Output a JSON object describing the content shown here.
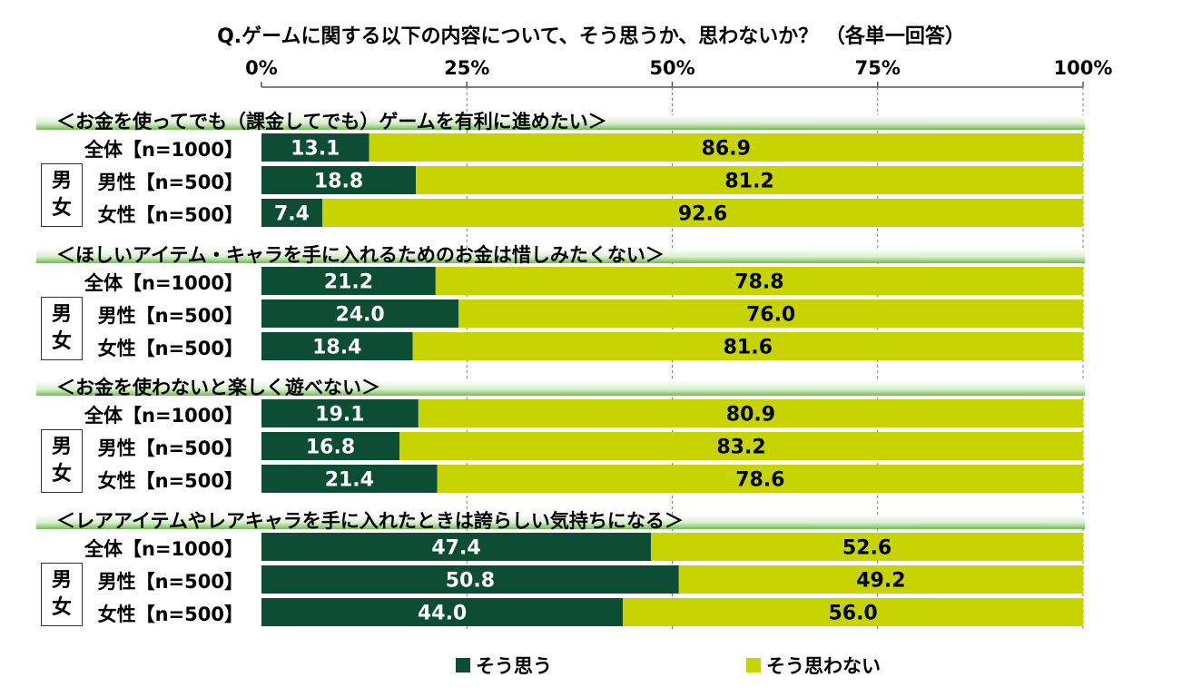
{
  "colors": {
    "agree": "#0d4d33",
    "disagree": "#c8d400",
    "grid": "#7f7f7f",
    "band": "#6cc04a"
  },
  "chart_data": {
    "type": "bar",
    "orientation": "horizontal",
    "stacked": true,
    "title": "Q.ゲームに関する以下の内容について、そう思うか、思わないか？ （各単一回答）",
    "xlim": [
      0,
      100
    ],
    "ticks": [
      "0%",
      "25%",
      "50%",
      "75%",
      "100%"
    ],
    "legend": [
      "そう思う",
      "そう思わない"
    ],
    "gender_box": [
      "男",
      "女"
    ],
    "rows": [
      "全体【n=1000】",
      "男性【n=500】",
      "女性【n=500】"
    ],
    "groups": [
      {
        "title": "＜お金を使ってでも（課金してでも）ゲームを有利に進めたい＞",
        "agree": [
          "13.1",
          "18.8",
          "7.4"
        ],
        "disagree": [
          "86.9",
          "81.2",
          "92.6"
        ]
      },
      {
        "title": "＜ほしいアイテム・キャラを手に入れるためのお金は惜しみたくない＞",
        "agree": [
          "21.2",
          "24.0",
          "18.4"
        ],
        "disagree": [
          "78.8",
          "76.0",
          "81.6"
        ]
      },
      {
        "title": "＜お金を使わないと楽しく遊べない＞",
        "agree": [
          "19.1",
          "16.8",
          "21.4"
        ],
        "disagree": [
          "80.9",
          "83.2",
          "78.6"
        ]
      },
      {
        "title": "＜レアアイテムやレアキャラを手に入れたときは誇らしい気持ちになる＞",
        "agree": [
          "47.4",
          "50.8",
          "44.0"
        ],
        "disagree": [
          "52.6",
          "49.2",
          "56.0"
        ]
      }
    ]
  }
}
